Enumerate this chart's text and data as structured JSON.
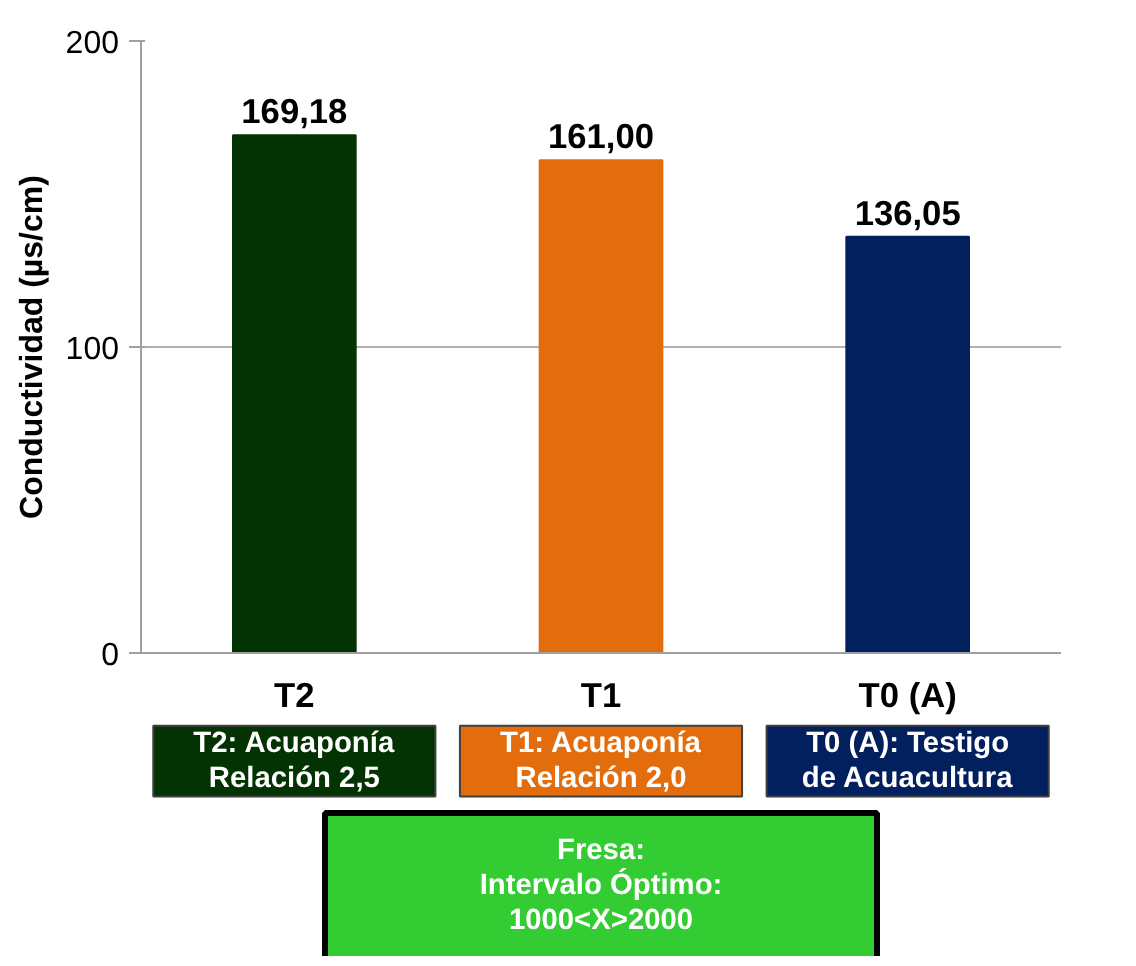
{
  "chart_data": {
    "type": "bar",
    "ylabel": "Conductividad (µs/cm)",
    "categories": [
      "T2",
      "T1",
      "T0 (A)"
    ],
    "values": [
      169.18,
      161.0,
      136.05
    ],
    "colors": [
      "#033203",
      "#e36c0d",
      "#021f5e"
    ],
    "value_labels": [
      "169,18",
      "161,00",
      "136,05"
    ],
    "ylim": [
      0,
      200
    ],
    "yticks": [
      0,
      100,
      200
    ],
    "grid": "y",
    "annotations": [
      "T2: Acuaponía\nRelación 2,5",
      "T1: Acuaponía\nRelación 2,0",
      "T0 (A): Testigo\nde Acuacultura",
      "Fresa:\nIntervalo Óptimo:\n1000<X>2000"
    ]
  }
}
